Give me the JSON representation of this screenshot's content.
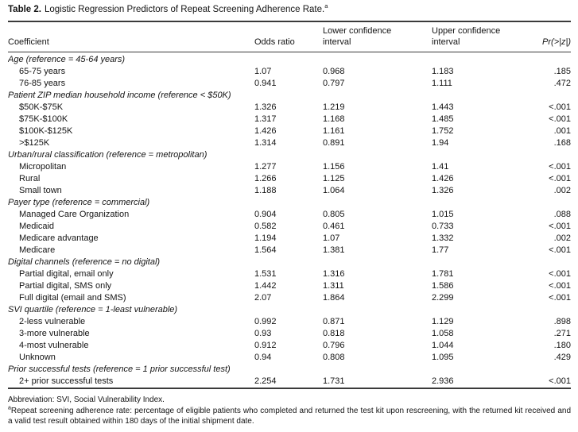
{
  "title": {
    "bold": "Table 2.",
    "rest": "Logistic Regression Predictors of Repeat Screening Adherence Rate.",
    "sup": "a"
  },
  "header": {
    "coefficient": "Coefficient",
    "odds_ratio": "Odds ratio",
    "lower_ci": "Lower confidence interval",
    "upper_ci": "Upper confidence interval",
    "p": "Pr(>|z|)"
  },
  "sections": [
    {
      "header": "Age (reference = 45-64 years)",
      "rows": [
        {
          "label": "65-75 years",
          "odds_ratio": "1.07",
          "lower_ci": "0.968",
          "upper_ci": "1.183",
          "p": ".185"
        },
        {
          "label": "76-85 years",
          "odds_ratio": "0.941",
          "lower_ci": "0.797",
          "upper_ci": "1.111",
          "p": ".472"
        }
      ]
    },
    {
      "header": "Patient ZIP median household income (reference < $50K)",
      "rows": [
        {
          "label": "$50K-$75K",
          "odds_ratio": "1.326",
          "lower_ci": "1.219",
          "upper_ci": "1.443",
          "p": "<.001"
        },
        {
          "label": "$75K-$100K",
          "odds_ratio": "1.317",
          "lower_ci": "1.168",
          "upper_ci": "1.485",
          "p": "<.001"
        },
        {
          "label": "$100K-$125K",
          "odds_ratio": "1.426",
          "lower_ci": "1.161",
          "upper_ci": "1.752",
          "p": ".001"
        },
        {
          "label": ">$125K",
          "odds_ratio": "1.314",
          "lower_ci": "0.891",
          "upper_ci": "1.94",
          "p": ".168"
        }
      ]
    },
    {
      "header": "Urban/rural classification (reference = metropolitan)",
      "rows": [
        {
          "label": "Micropolitan",
          "odds_ratio": "1.277",
          "lower_ci": "1.156",
          "upper_ci": "1.41",
          "p": "<.001"
        },
        {
          "label": "Rural",
          "odds_ratio": "1.266",
          "lower_ci": "1.125",
          "upper_ci": "1.426",
          "p": "<.001"
        },
        {
          "label": "Small town",
          "odds_ratio": "1.188",
          "lower_ci": "1.064",
          "upper_ci": "1.326",
          "p": ".002"
        }
      ]
    },
    {
      "header": "Payer type (reference = commercial)",
      "rows": [
        {
          "label": "Managed Care Organization",
          "odds_ratio": "0.904",
          "lower_ci": "0.805",
          "upper_ci": "1.015",
          "p": ".088"
        },
        {
          "label": "Medicaid",
          "odds_ratio": "0.582",
          "lower_ci": "0.461",
          "upper_ci": "0.733",
          "p": "<.001"
        },
        {
          "label": "Medicare advantage",
          "odds_ratio": "1.194",
          "lower_ci": "1.07",
          "upper_ci": "1.332",
          "p": ".002"
        },
        {
          "label": "Medicare",
          "odds_ratio": "1.564",
          "lower_ci": "1.381",
          "upper_ci": "1.77",
          "p": "<.001"
        }
      ]
    },
    {
      "header": "Digital channels (reference = no digital)",
      "rows": [
        {
          "label": "Partial digital, email only",
          "odds_ratio": "1.531",
          "lower_ci": "1.316",
          "upper_ci": "1.781",
          "p": "<.001"
        },
        {
          "label": "Partial digital, SMS only",
          "odds_ratio": "1.442",
          "lower_ci": "1.311",
          "upper_ci": "1.586",
          "p": "<.001"
        },
        {
          "label": "Full digital (email and SMS)",
          "odds_ratio": "2.07",
          "lower_ci": "1.864",
          "upper_ci": "2.299",
          "p": "<.001"
        }
      ]
    },
    {
      "header": "SVI quartile (reference = 1-least vulnerable)",
      "rows": [
        {
          "label": "2-less vulnerable",
          "odds_ratio": "0.992",
          "lower_ci": "0.871",
          "upper_ci": "1.129",
          "p": ".898"
        },
        {
          "label": "3-more vulnerable",
          "odds_ratio": "0.93",
          "lower_ci": "0.818",
          "upper_ci": "1.058",
          "p": ".271"
        },
        {
          "label": "4-most vulnerable",
          "odds_ratio": "0.912",
          "lower_ci": "0.796",
          "upper_ci": "1.044",
          "p": ".180"
        },
        {
          "label": "Unknown",
          "odds_ratio": "0.94",
          "lower_ci": "0.808",
          "upper_ci": "1.095",
          "p": ".429"
        }
      ]
    },
    {
      "header": "Prior successful tests (reference = 1 prior successful test)",
      "rows": [
        {
          "label": "2+ prior successful tests",
          "odds_ratio": "2.254",
          "lower_ci": "1.731",
          "upper_ci": "2.936",
          "p": "<.001"
        }
      ]
    }
  ],
  "footnotes": {
    "abbreviation": "Abbreviation: SVI, Social Vulnerability Index.",
    "note_sup": "a",
    "note": "Repeat screening adherence rate: percentage of eligible patients who completed and returned the test kit upon rescreening, with the returned kit received and a valid test result obtained within 180 days of the initial shipment date."
  }
}
